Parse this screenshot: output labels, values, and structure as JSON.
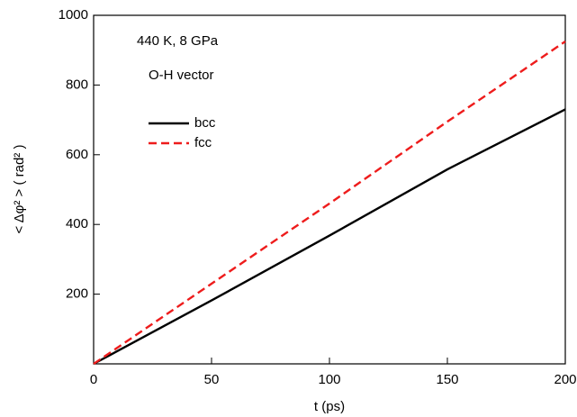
{
  "chart_data": {
    "type": "line",
    "xlabel": "t (ps)",
    "ylabel": "< Δφ² > ( rad² )",
    "annotations": [
      "440 K, 8 GPa",
      "O-H vector"
    ],
    "x": [
      0,
      50,
      100,
      150,
      200
    ],
    "series": [
      {
        "name": "bcc",
        "color": "#000000",
        "dash": "solid",
        "values": [
          0,
          182,
          368,
          558,
          730
        ]
      },
      {
        "name": "fcc",
        "color": "#ee1c1c",
        "dash": "dashed",
        "values": [
          0,
          230,
          460,
          695,
          925
        ]
      }
    ],
    "xlim": [
      0,
      200
    ],
    "xticks": [
      0,
      50,
      100,
      150,
      200
    ],
    "ylim": [
      0,
      1000
    ],
    "yticks": [
      200,
      400,
      600,
      800,
      1000
    ],
    "legend": "upper left"
  }
}
